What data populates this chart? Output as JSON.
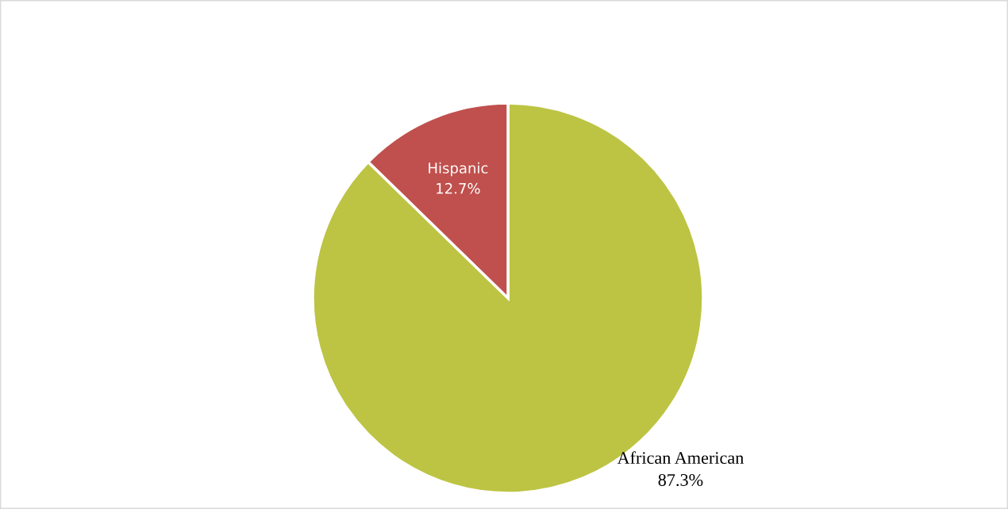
{
  "chart_data": {
    "type": "pie",
    "categories": [
      "African American",
      "Hispanic"
    ],
    "values": [
      87.3,
      12.7
    ],
    "colors": [
      "#bdc443",
      "#c0504d"
    ],
    "value_labels": [
      "87.3%",
      "12.7%"
    ]
  }
}
